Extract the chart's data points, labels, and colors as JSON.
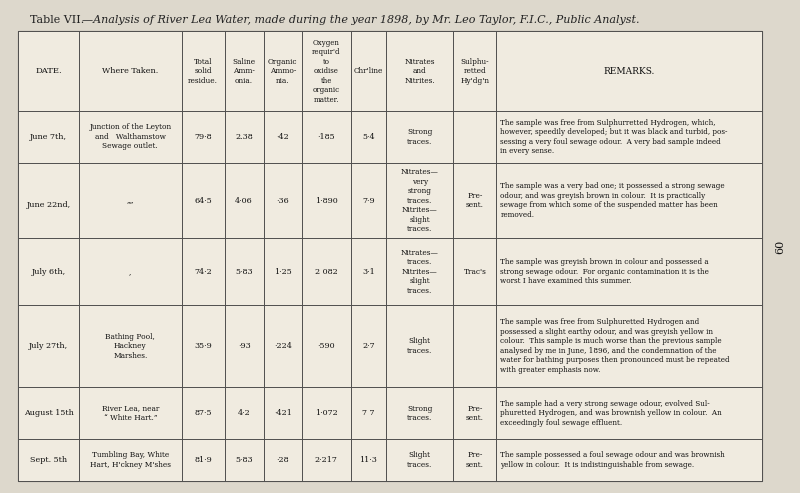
{
  "title_prefix": "Table VII.",
  "title_rest": "—Analysis of River Lea Water, made during the year 1898, by Mr. Leo Taylor, F.I.C., Public Analyst.",
  "bg_color": "#ddd8cc",
  "table_bg": "#f0ebe0",
  "header_cols": [
    "DATE.",
    "Where Taken.",
    "Total\nsolid\nresidue.",
    "Saline\nAmm-\nonia.",
    "Organic\nAmmo-\nnia.",
    "Oxygen\nrequir'd\nto\noxidise\nthe\norganic\nmatter.",
    "Chr'line",
    "Nitrates\nand\nNitrites.",
    "Sulphu-\nretted\nHy'dg'n",
    "REMARKS."
  ],
  "rows": [
    {
      "date": "June 7th,",
      "where": "Junction of the Leyton\nand   Walthamstow\nSewage outlet.",
      "total": "79·8",
      "saline": "2.38",
      "organic": "·42",
      "oxygen": "·185",
      "chlorine": "5·4",
      "nitrates": "Strong\ntraces.",
      "sulph": "",
      "remarks": "The sample was free from Sulphurretted Hydrogen, which,\nhowever, speedily developed; but it was black and turbid, pos-\nsessing a very foul sewage odour.  A very bad sample indeed\nin every sense."
    },
    {
      "date": "June 22nd,",
      "where": "„„",
      "total": "64·5",
      "saline": "4·06",
      "organic": "·36",
      "oxygen": "1·890",
      "chlorine": "7·9",
      "nitrates": "Nitrates—\nvery\nstrong\ntraces.\nNitrites—\nslight\ntraces.",
      "sulph": "Pre-\nsent.",
      "remarks": "The sample was a very bad one; it possessed a strong sewage\nodour, and was greyish brown in colour.  It is practically\nsewage from which some of the suspended matter has been\nremoved."
    },
    {
      "date": "July 6th,",
      "where": ",",
      "total": "74·2",
      "saline": "5·83",
      "organic": "1·25",
      "oxygen": "2 082",
      "chlorine": "3·1",
      "nitrates": "Nitrates—\ntraces.\nNitrites—\nslight\ntraces.",
      "sulph": "Trac's",
      "remarks": "The sample was greyish brown in colour and possessed a\nstrong sewage odour.  For organic contamination it is the\nworst I have examined this summer."
    },
    {
      "date": "July 27th,",
      "where": "Bathing Pool,\nHackney\nMarshes.",
      "total": "35·9",
      "saline": "·93",
      "organic": "·224",
      "oxygen": "·590",
      "chlorine": "2·7",
      "nitrates": "Slight\ntraces.",
      "sulph": "",
      "remarks": "The sample was free from Sulphuretted Hydrogen and\npossessed a slight earthy odour, and was greyish yellow in\ncolour.  This sample is much worse than the previous sample\nanalysed by me in June, 1896, and the condemnation of the\nwater for bathing purposes then pronounced must be repeated\nwith greater emphasis now."
    },
    {
      "date": "August 15th",
      "where": "River Lea, near\n“ White Hart.”",
      "total": "87·5",
      "saline": "4·2",
      "organic": "·421",
      "oxygen": "1·072",
      "chlorine": "7 7",
      "nitrates": "Strong\ntraces.",
      "sulph": "Pre-\nsent.",
      "remarks": "The sample had a very strong sewage odour, evolved Sul-\nphuretted Hydrogen, and was brownish yellow in colour.  An\nexceedingly foul sewage effluent."
    },
    {
      "date": "Sept. 5th",
      "where": "Tumbling Bay, White\nHart, H'ckney M'shes",
      "total": "81·9",
      "saline": "5·83",
      "organic": "·28",
      "oxygen": "2·217",
      "chlorine": "11·3",
      "nitrates": "Slight\ntraces.",
      "sulph": "Pre-\nsent.",
      "remarks": "The sample possessed a foul sewage odour and was brownish\nyellow in colour.  It is indistinguishable from sewage."
    }
  ],
  "page_num": "60"
}
